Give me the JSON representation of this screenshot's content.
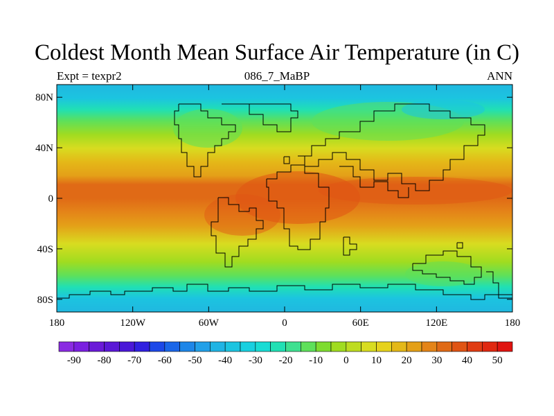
{
  "title": "Coldest Month Mean Surface Air Temperature (in C)",
  "subtitle_left": "Expt = texpr2",
  "subtitle_center": "086_7_MaBP",
  "subtitle_right": "ANN",
  "map": {
    "projection": "cylindrical equidistant",
    "lon_range": [
      -180,
      180
    ],
    "lat_range": [
      -90,
      90
    ],
    "lon_ticks": [
      {
        "value": -180,
        "label": "180"
      },
      {
        "value": -120,
        "label": "120W"
      },
      {
        "value": -60,
        "label": "60W"
      },
      {
        "value": 0,
        "label": "0"
      },
      {
        "value": 60,
        "label": "60E"
      },
      {
        "value": 120,
        "label": "120E"
      },
      {
        "value": 180,
        "label": "180"
      }
    ],
    "lat_ticks": [
      {
        "value": 80,
        "label": "80N"
      },
      {
        "value": 40,
        "label": "40N"
      },
      {
        "value": 0,
        "label": "0"
      },
      {
        "value": -40,
        "label": "40S"
      },
      {
        "value": -80,
        "label": "80S"
      }
    ]
  },
  "colorbar": {
    "levels": [
      -90,
      -85,
      -80,
      -75,
      -70,
      -65,
      -60,
      -55,
      -50,
      -45,
      -40,
      -35,
      -30,
      -25,
      -20,
      -15,
      -10,
      -5,
      0,
      5,
      10,
      15,
      20,
      25,
      30,
      35,
      40,
      45,
      50
    ],
    "labels": [
      "-90",
      "-80",
      "-70",
      "-60",
      "-50",
      "-40",
      "-30",
      "-20",
      "-10",
      "0",
      "10",
      "20",
      "30",
      "40",
      "50"
    ],
    "colors": [
      "#8a2be2",
      "#7a1fe0",
      "#6a1ad8",
      "#5a18d6",
      "#4a18d8",
      "#3020e0",
      "#1c48e8",
      "#1a66e8",
      "#1e86e8",
      "#22a0e8",
      "#20b4e4",
      "#1cc4e0",
      "#18d0e0",
      "#18dcd4",
      "#20e0b4",
      "#3ee090",
      "#5ee05a",
      "#7edc30",
      "#a0dc20",
      "#bedc20",
      "#d8dc20",
      "#e6d21c",
      "#e4b818",
      "#e4a018",
      "#e48418",
      "#e06a16",
      "#e05414",
      "#e03c12",
      "#e02810",
      "#e01410"
    ]
  }
}
